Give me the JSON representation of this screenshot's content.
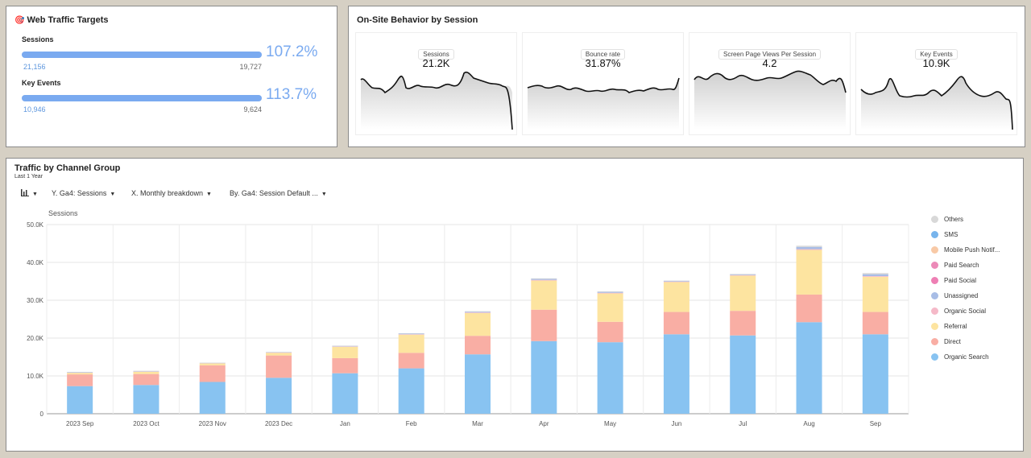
{
  "targets": {
    "title": "Web Traffic Targets",
    "icon": "target-icon",
    "metrics": [
      {
        "label": "Sessions",
        "actual": "21,156",
        "target": "19,727",
        "percent": "107.2%",
        "fill": 1.0
      },
      {
        "label": "Key Events",
        "actual": "10,946",
        "target": "9,624",
        "percent": "113.7%",
        "fill": 1.0
      }
    ]
  },
  "behavior": {
    "title": "On-Site Behavior by Session",
    "cards": [
      {
        "label": "Sessions",
        "value": "21.2K"
      },
      {
        "label": "Bounce rate",
        "value": "31.87%"
      },
      {
        "label": "Screen Page Views Per Session",
        "value": "4.2"
      },
      {
        "label": "Key Events",
        "value": "10.9K"
      }
    ]
  },
  "traffic": {
    "title": "Traffic by Channel Group",
    "subtitle": "Last 1 Year",
    "toolbar": {
      "y": "Y. Ga4: Sessions",
      "x": "X. Monthly breakdown",
      "by": "By. Ga4: Session Default ..."
    }
  },
  "chart_data": {
    "type": "bar",
    "stacked": true,
    "ylabel": "Sessions",
    "ylim": [
      0,
      50000
    ],
    "yticks": [
      "0",
      "10.0K",
      "20.0K",
      "30.0K",
      "40.0K",
      "50.0K"
    ],
    "categories": [
      "2023 Sep",
      "2023 Oct",
      "2023 Nov",
      "2023 Dec",
      "Jan",
      "Feb",
      "Mar",
      "Apr",
      "May",
      "Jun",
      "Jul",
      "Aug",
      "Sep"
    ],
    "legend_position": "right",
    "series": [
      {
        "name": "Organic Search",
        "color": "#88c3f1",
        "values": [
          7300,
          7600,
          8400,
          9500,
          10700,
          12000,
          15700,
          19200,
          18900,
          21000,
          20700,
          24200,
          21000
        ]
      },
      {
        "name": "Direct",
        "color": "#f9aea4",
        "values": [
          3100,
          2900,
          4400,
          5900,
          4000,
          4100,
          4900,
          8300,
          5400,
          5900,
          6500,
          7300,
          5900
        ]
      },
      {
        "name": "Referral",
        "color": "#fde4a0",
        "values": [
          400,
          600,
          500,
          700,
          3000,
          4800,
          6000,
          7700,
          7500,
          7900,
          9300,
          11800,
          9300
        ]
      },
      {
        "name": "Organic Social",
        "color": "#f5b9c8",
        "values": [
          50,
          60,
          60,
          80,
          100,
          120,
          150,
          180,
          160,
          150,
          150,
          200,
          180
        ]
      },
      {
        "name": "Unassigned",
        "color": "#a8bde6",
        "values": [
          100,
          100,
          80,
          80,
          120,
          150,
          200,
          250,
          250,
          150,
          150,
          600,
          500
        ]
      },
      {
        "name": "Paid Social",
        "color": "#ee7fb4",
        "values": [
          0,
          0,
          0,
          0,
          0,
          0,
          0,
          0,
          0,
          0,
          0,
          0,
          0
        ]
      },
      {
        "name": "Paid Search",
        "color": "#ec8ab8",
        "values": [
          0,
          0,
          0,
          0,
          0,
          0,
          0,
          0,
          0,
          0,
          0,
          0,
          0
        ]
      },
      {
        "name": "Mobile Push Notif...",
        "color": "#f8c9a6",
        "values": [
          0,
          0,
          0,
          0,
          0,
          0,
          0,
          0,
          0,
          0,
          0,
          0,
          0
        ]
      },
      {
        "name": "SMS",
        "color": "#77b4ec",
        "values": [
          0,
          0,
          0,
          0,
          0,
          0,
          0,
          0,
          0,
          0,
          0,
          0,
          0
        ]
      },
      {
        "name": "Others",
        "color": "#d8d8d8",
        "values": [
          100,
          100,
          80,
          80,
          100,
          100,
          150,
          150,
          150,
          100,
          150,
          300,
          300
        ]
      }
    ]
  }
}
